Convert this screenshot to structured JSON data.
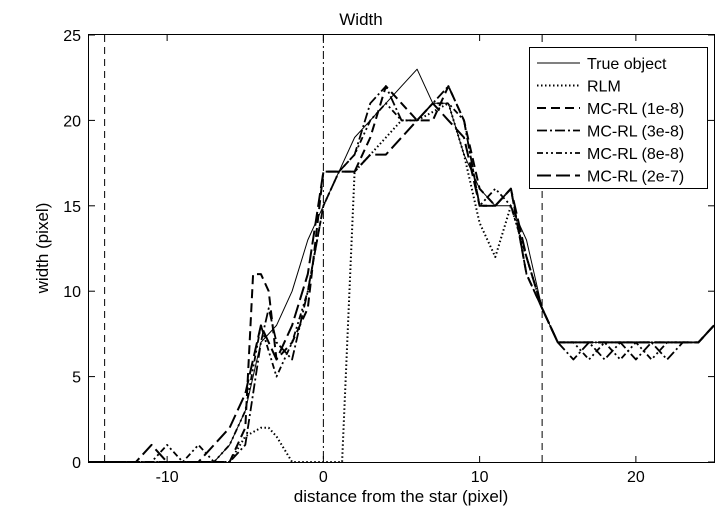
{
  "chart_data": {
    "type": "line",
    "title": "Width",
    "xlabel": "distance from the star (pixel)",
    "ylabel": "width (pixel)",
    "xlim": [
      -15,
      25
    ],
    "ylim": [
      0,
      25
    ],
    "xticks": [
      -10,
      0,
      10,
      20
    ],
    "xtick_labels": [
      "-10",
      "0",
      "10",
      "20"
    ],
    "yticks": [
      0,
      5,
      10,
      15,
      20,
      25
    ],
    "ytick_labels": [
      "0",
      "5",
      "10",
      "15",
      "20",
      "25"
    ],
    "grid": false,
    "legend_position": "top-right",
    "vertical_lines": [
      {
        "x": -14,
        "style": "dashed"
      },
      {
        "x": 0,
        "style": "dashdot"
      },
      {
        "x": 14,
        "style": "dashed"
      }
    ],
    "series": [
      {
        "name": "True object",
        "style": "solid",
        "x": [
          -15,
          -8,
          -7,
          -6,
          -5,
          -4,
          -3,
          -2,
          -1,
          0,
          1,
          2,
          3,
          4,
          5,
          6,
          7,
          8,
          9,
          10,
          11,
          12,
          13,
          14,
          15,
          16,
          17,
          18,
          19,
          20,
          21,
          22,
          23,
          24,
          25
        ],
        "y": [
          0,
          0,
          0,
          1,
          3,
          7,
          8,
          10,
          13,
          15,
          17,
          19,
          20,
          21,
          22,
          23,
          21,
          21,
          18,
          16,
          15,
          15,
          13,
          9,
          7,
          7,
          7,
          7,
          7,
          7,
          7,
          7,
          7,
          7,
          8
        ]
      },
      {
        "name": "RLM",
        "style": "dotted",
        "x": [
          -15,
          -6,
          -5,
          -4,
          -3.5,
          -3,
          -2,
          -1,
          0,
          1,
          1.2,
          2,
          3,
          4,
          5,
          6,
          7,
          8,
          9,
          10,
          11,
          12,
          13,
          14,
          15,
          16,
          17,
          18,
          19,
          20,
          21,
          22,
          23,
          24,
          25
        ],
        "y": [
          0,
          0,
          1.5,
          2,
          2,
          1.5,
          0,
          0,
          0,
          0,
          0,
          17,
          18,
          19,
          20,
          20,
          20.5,
          21,
          18,
          14,
          12,
          15,
          12,
          9,
          7,
          7,
          7,
          7,
          7,
          7,
          7,
          7,
          7,
          7,
          8
        ]
      },
      {
        "name": "MC-RL (1e-8)",
        "style": "dashed",
        "x": [
          -15,
          -7,
          -6,
          -5,
          -4.5,
          -4,
          -3.5,
          -3,
          -2,
          -1,
          0,
          1,
          2,
          3,
          4,
          5,
          6,
          7,
          8,
          9,
          10,
          11,
          12,
          13,
          14,
          15,
          16,
          17,
          18,
          19,
          20,
          21,
          22,
          23,
          24,
          25
        ],
        "y": [
          0,
          0,
          0,
          2,
          11,
          11,
          10,
          6,
          7,
          9,
          17,
          17,
          17,
          19,
          22,
          21,
          20,
          20,
          22,
          20,
          16,
          15,
          16,
          11,
          9,
          7,
          7,
          7,
          7,
          7,
          7,
          7,
          7,
          7,
          7,
          8
        ]
      },
      {
        "name": "MC-RL (3e-8)",
        "style": "dashdot",
        "x": [
          -15,
          -6,
          -5,
          -4,
          -3.5,
          -3,
          -2,
          -1,
          0,
          1,
          2,
          3,
          4,
          5,
          6,
          7,
          8,
          9,
          10,
          11,
          12,
          13,
          14,
          15,
          16,
          17,
          18,
          19,
          20,
          21,
          22,
          23,
          24,
          25
        ],
        "y": [
          0,
          0,
          1,
          7,
          9,
          7,
          6,
          10,
          15,
          17,
          18,
          21,
          22,
          20,
          20,
          21,
          22,
          20,
          15,
          15,
          16,
          11,
          9,
          7,
          6,
          7,
          6,
          7,
          6,
          7,
          6,
          7,
          7,
          8
        ]
      },
      {
        "name": "MC-RL (8e-8)",
        "style": "dashdotdot",
        "x": [
          -15,
          -11,
          -10,
          -9,
          -8,
          -7,
          -6,
          -5,
          -4,
          -3,
          -2,
          -1,
          0,
          1,
          2,
          3,
          4,
          5,
          6,
          7,
          8,
          9,
          10,
          11,
          12,
          13,
          14,
          15,
          16,
          17,
          18,
          19,
          20,
          21,
          22,
          23,
          24,
          25
        ],
        "y": [
          0,
          0,
          1,
          0,
          1,
          0,
          1,
          3,
          8,
          5,
          7,
          10,
          15,
          17,
          18,
          20,
          21,
          20,
          20,
          21,
          21,
          20,
          15,
          16,
          15,
          12,
          9,
          7,
          7,
          6,
          7,
          6,
          7,
          6,
          7,
          7,
          7,
          8
        ]
      },
      {
        "name": "MC-RL (2e-7)",
        "style": "longdash",
        "x": [
          -15,
          -12,
          -11,
          -10,
          -9,
          -8,
          -7,
          -6,
          -5,
          -4,
          -3,
          -2,
          -1,
          0,
          1,
          2,
          3,
          4,
          5,
          6,
          7,
          8,
          9,
          10,
          11,
          12,
          13,
          14,
          15,
          16,
          17,
          18,
          19,
          20,
          21,
          22,
          23,
          24,
          25
        ],
        "y": [
          0,
          0,
          1,
          0,
          0,
          0,
          1,
          2,
          4,
          8,
          6,
          8,
          11,
          17,
          17,
          17,
          18,
          18,
          19,
          20,
          21,
          20,
          19,
          15,
          15,
          16,
          12,
          9,
          7,
          7,
          7,
          7,
          7,
          7,
          7,
          7,
          7,
          7,
          8
        ]
      }
    ]
  }
}
